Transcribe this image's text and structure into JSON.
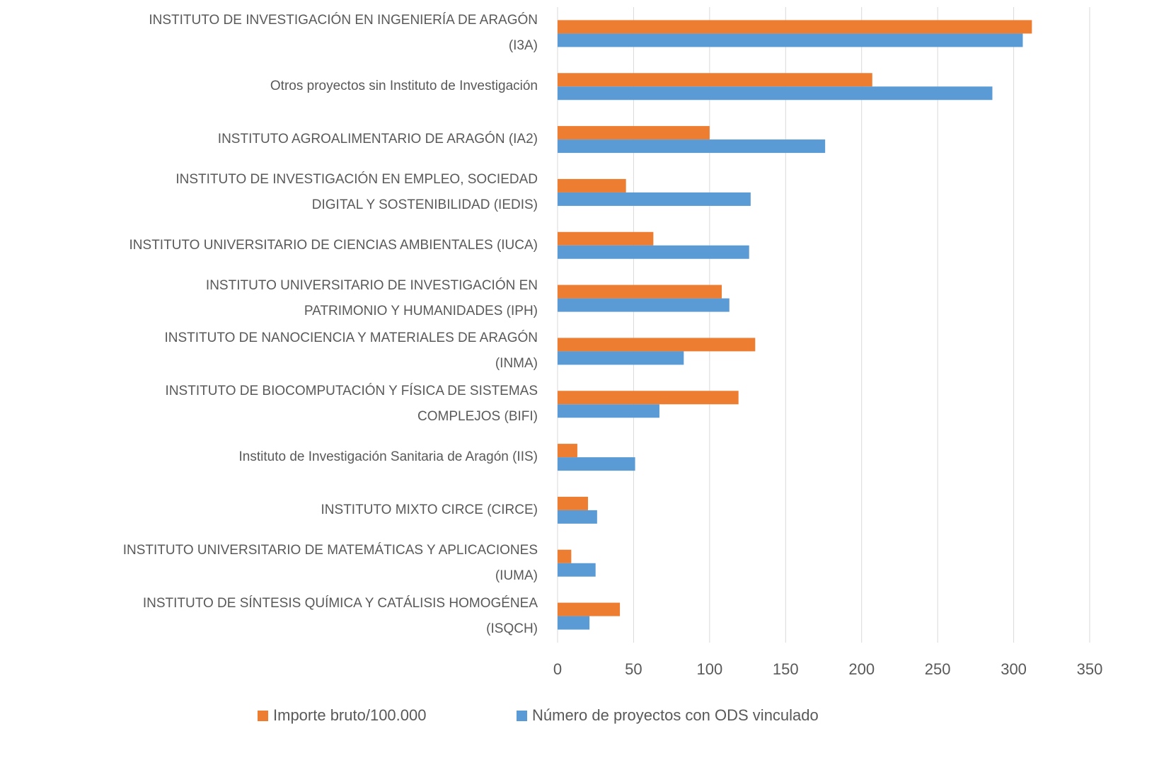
{
  "chart_data": {
    "type": "hbar",
    "categories": [
      "INSTITUTO DE INVESTIGACIÓN EN INGENIERÍA DE ARAGÓN\n(I3A)",
      "Otros proyectos sin Instituto de Investigación",
      "INSTITUTO AGROALIMENTARIO DE ARAGÓN (IA2)",
      "INSTITUTO DE INVESTIGACIÓN EN EMPLEO, SOCIEDAD\nDIGITAL Y SOSTENIBILIDAD (IEDIS)",
      "INSTITUTO UNIVERSITARIO DE CIENCIAS AMBIENTALES (IUCA)",
      "INSTITUTO UNIVERSITARIO DE INVESTIGACIÓN EN\nPATRIMONIO Y HUMANIDADES (IPH)",
      "INSTITUTO DE NANOCIENCIA Y MATERIALES DE ARAGÓN\n(INMA)",
      "INSTITUTO DE BIOCOMPUTACIÓN Y FÍSICA DE SISTEMAS\nCOMPLEJOS (BIFI)",
      "Instituto de Investigación Sanitaria de Aragón (IIS)",
      "INSTITUTO MIXTO CIRCE (CIRCE)",
      "INSTITUTO UNIVERSITARIO DE MATEMÁTICAS Y APLICACIONES\n(IUMA)",
      "INSTITUTO DE SÍNTESIS QUÍMICA Y CATÁLISIS HOMOGÉNEA\n(ISQCH)"
    ],
    "series": [
      {
        "name": "Importe bruto/100.000",
        "color": "#ed7d31",
        "values": [
          312,
          207,
          100,
          45,
          63,
          108,
          130,
          119,
          13,
          20,
          9,
          41
        ]
      },
      {
        "name": "Número de proyectos con ODS vinculado",
        "color": "#5b9bd5",
        "values": [
          306,
          286,
          176,
          127,
          126,
          113,
          83,
          67,
          51,
          26,
          25,
          21
        ]
      }
    ],
    "xlim": [
      0,
      350
    ],
    "xticks": [
      0,
      50,
      100,
      150,
      200,
      250,
      300,
      350
    ],
    "grid": true,
    "legend": "bottom"
  }
}
